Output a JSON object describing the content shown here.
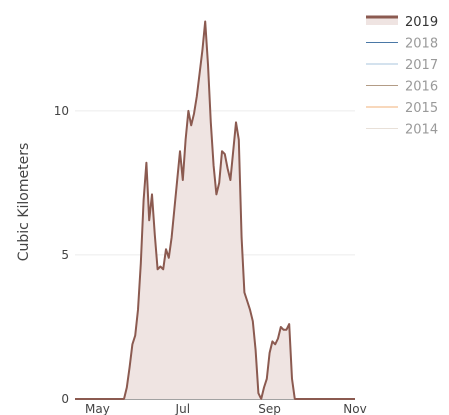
{
  "chart_data": {
    "type": "area",
    "title": "",
    "xlabel": "",
    "ylabel": "Cubic Kilometers",
    "x_ticks": [
      "May",
      "Jul",
      "Sep",
      "Nov"
    ],
    "y_ticks": [
      0,
      5,
      10
    ],
    "xlim": [
      "2019-04-15",
      "2019-11-01"
    ],
    "ylim": [
      0,
      13.5
    ],
    "grid": true,
    "legend_position": "top-right",
    "series": [
      {
        "name": "2019",
        "color": "#8b5a50",
        "fill": "#efe4e2",
        "points": [
          [
            "2019-04-15",
            0
          ],
          [
            "2019-05-20",
            0
          ],
          [
            "2019-05-22",
            0.4
          ],
          [
            "2019-05-24",
            1.1
          ],
          [
            "2019-05-26",
            1.9
          ],
          [
            "2019-05-28",
            2.2
          ],
          [
            "2019-05-30",
            3.1
          ],
          [
            "2019-06-01",
            4.7
          ],
          [
            "2019-06-03",
            6.9
          ],
          [
            "2019-06-05",
            8.2
          ],
          [
            "2019-06-07",
            6.2
          ],
          [
            "2019-06-09",
            7.1
          ],
          [
            "2019-06-11",
            5.7
          ],
          [
            "2019-06-13",
            4.5
          ],
          [
            "2019-06-15",
            4.6
          ],
          [
            "2019-06-17",
            4.5
          ],
          [
            "2019-06-19",
            5.2
          ],
          [
            "2019-06-21",
            4.9
          ],
          [
            "2019-06-23",
            5.6
          ],
          [
            "2019-06-25",
            6.6
          ],
          [
            "2019-06-27",
            7.6
          ],
          [
            "2019-06-29",
            8.6
          ],
          [
            "2019-07-01",
            7.6
          ],
          [
            "2019-07-03",
            9.0
          ],
          [
            "2019-07-05",
            10.0
          ],
          [
            "2019-07-07",
            9.5
          ],
          [
            "2019-07-09",
            9.9
          ],
          [
            "2019-07-11",
            10.5
          ],
          [
            "2019-07-13",
            11.3
          ],
          [
            "2019-07-15",
            12.1
          ],
          [
            "2019-07-17",
            13.1
          ],
          [
            "2019-07-19",
            11.6
          ],
          [
            "2019-07-21",
            9.6
          ],
          [
            "2019-07-23",
            8.1
          ],
          [
            "2019-07-25",
            7.1
          ],
          [
            "2019-07-27",
            7.5
          ],
          [
            "2019-07-29",
            8.6
          ],
          [
            "2019-07-31",
            8.5
          ],
          [
            "2019-08-02",
            8.0
          ],
          [
            "2019-08-04",
            7.6
          ],
          [
            "2019-08-06",
            8.6
          ],
          [
            "2019-08-08",
            9.6
          ],
          [
            "2019-08-10",
            9.0
          ],
          [
            "2019-08-12",
            5.6
          ],
          [
            "2019-08-14",
            3.7
          ],
          [
            "2019-08-16",
            3.4
          ],
          [
            "2019-08-18",
            3.1
          ],
          [
            "2019-08-20",
            2.7
          ],
          [
            "2019-08-22",
            1.7
          ],
          [
            "2019-08-24",
            0.2
          ],
          [
            "2019-08-26",
            0.0
          ],
          [
            "2019-08-28",
            0.4
          ],
          [
            "2019-08-30",
            0.7
          ],
          [
            "2019-09-01",
            1.6
          ],
          [
            "2019-09-03",
            2.0
          ],
          [
            "2019-09-05",
            1.9
          ],
          [
            "2019-09-07",
            2.1
          ],
          [
            "2019-09-09",
            2.5
          ],
          [
            "2019-09-11",
            2.4
          ],
          [
            "2019-09-13",
            2.4
          ],
          [
            "2019-09-15",
            2.6
          ],
          [
            "2019-09-17",
            0.7
          ],
          [
            "2019-09-19",
            0.0
          ],
          [
            "2019-11-01",
            0
          ]
        ]
      },
      {
        "name": "2018",
        "color": "#4a78a6",
        "fill": "none",
        "points": []
      },
      {
        "name": "2017",
        "color": "#a9c4de",
        "fill": "none",
        "points": []
      },
      {
        "name": "2016",
        "color": "#b39c86",
        "fill": "none",
        "points": []
      },
      {
        "name": "2015",
        "color": "#f0b07a",
        "fill": "none",
        "points": []
      },
      {
        "name": "2014",
        "color": "#e8e0d8",
        "fill": "none",
        "points": []
      }
    ]
  }
}
